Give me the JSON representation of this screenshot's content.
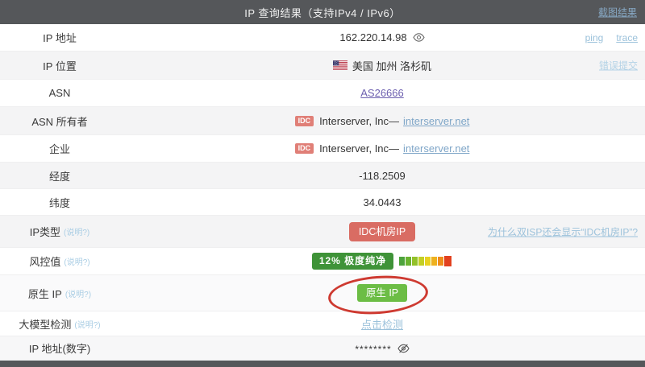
{
  "header": {
    "title": "IP 查询结果（支持IPv4 / IPv6）",
    "screenshot_link": "截图结果"
  },
  "rows": [
    {
      "label": "IP 地址",
      "value": "162.220.14.98",
      "ping_link": "ping",
      "trace_link": "trace"
    },
    {
      "label": "IP 位置",
      "value": "美国 加州 洛杉矶",
      "right_link": "错误提交"
    },
    {
      "label": "ASN",
      "link": "AS26666"
    },
    {
      "label": "ASN 所有者",
      "badge": "IDC",
      "value": "Interserver, Inc—",
      "link": "interserver.net"
    },
    {
      "label": "企业",
      "badge": "IDC",
      "value": "Interserver, Inc—",
      "link": "interserver.net"
    },
    {
      "label": "经度",
      "value": "-118.2509"
    },
    {
      "label": "纬度",
      "value": "34.0443"
    },
    {
      "label": "IP类型",
      "hint": "(说明?)",
      "badge": "IDC机房IP",
      "right_link": "为什么双ISP还会显示“IDC机房IP”?"
    },
    {
      "label": "风控值",
      "hint": "(说明?)",
      "badge": "12% 极度纯净",
      "gradient": [
        "#4da33c",
        "#6ab32f",
        "#93c12a",
        "#c3cf24",
        "#e8d121",
        "#eeb11e",
        "#ef8c1a",
        "#e2411f"
      ]
    },
    {
      "label": "原生 IP",
      "hint": "(说明?)",
      "badge": "原生 IP"
    },
    {
      "label": "大模型检测",
      "hint": "(说明?)",
      "link": "点击检测"
    },
    {
      "label": "IP 地址(数字)",
      "value": "********"
    }
  ],
  "colors": {
    "header_bg": "#55575a",
    "idc_badge_red": "#d96c63",
    "risk_green": "#3f9338",
    "native_green": "#6cbd45",
    "annotation_circle_red": "#ce3a31",
    "link_blue": "#9cc2db"
  }
}
